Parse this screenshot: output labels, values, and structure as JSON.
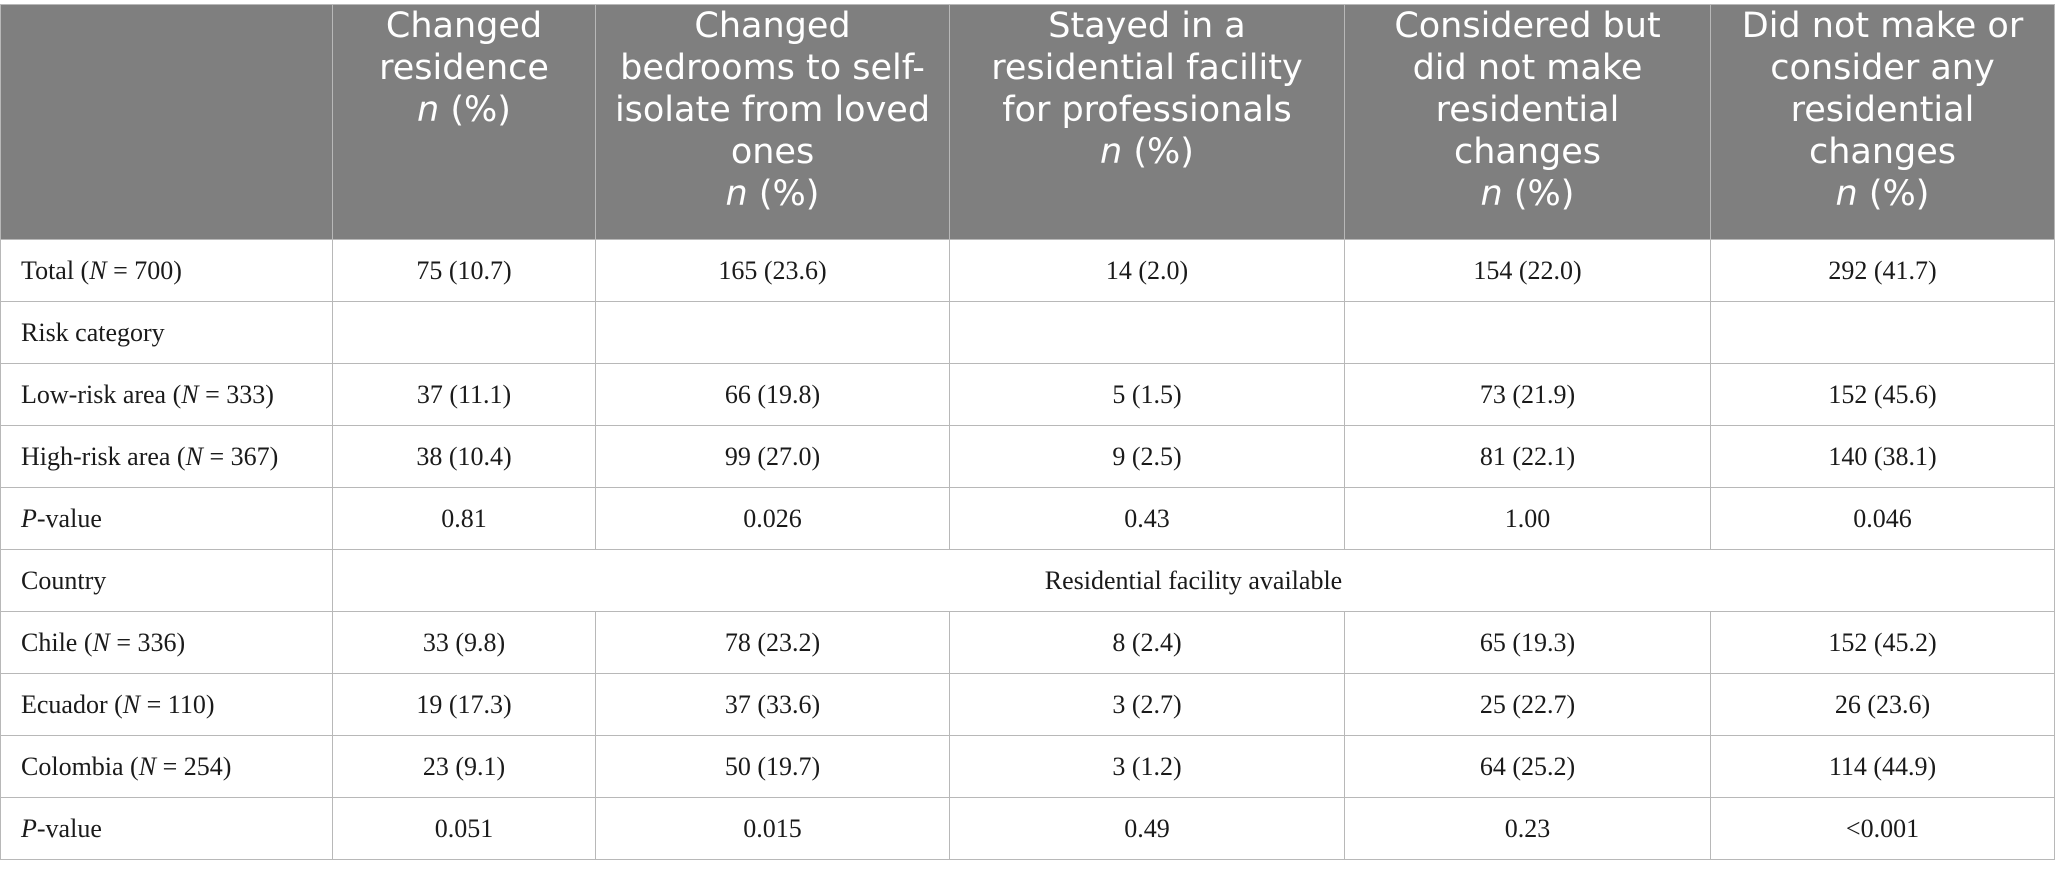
{
  "table": {
    "n_symbol": "n",
    "pct_symbol": " (%)",
    "columns": [
      {
        "lines": [
          "Changed",
          "residence"
        ]
      },
      {
        "lines": [
          "Changed",
          "bedrooms to self-",
          "isolate from loved",
          "ones"
        ]
      },
      {
        "lines": [
          "Stayed in a",
          "residential facility",
          "for professionals"
        ]
      },
      {
        "lines": [
          "Considered but",
          "did not make",
          "residential",
          "changes"
        ]
      },
      {
        "lines": [
          "Did not make or",
          "consider any",
          "residential",
          "changes"
        ]
      }
    ],
    "rows": {
      "total": {
        "label": "Total (",
        "n_var": "N",
        "n_value": " = 700)",
        "values": [
          "75 (10.7)",
          "165 (23.6)",
          "14 (2.0)",
          "154 (22.0)",
          "292 (41.7)"
        ]
      },
      "risk_category": {
        "label": "Risk category"
      },
      "low_risk": {
        "label": "Low-risk area (",
        "n_var": "N",
        "n_value": " = 333)",
        "values": [
          "37 (11.1)",
          "66 (19.8)",
          "5 (1.5)",
          "73 (21.9)",
          "152 (45.6)"
        ]
      },
      "high_risk": {
        "label": "High-risk area (",
        "n_var": "N",
        "n_value": " = 367)",
        "values": [
          "38 (10.4)",
          "99 (27.0)",
          "9 (2.5)",
          "81 (22.1)",
          "140 (38.1)"
        ]
      },
      "p_risk": {
        "p_var": "P",
        "label": "-value",
        "values": [
          "0.81",
          "0.026",
          "0.43",
          "1.00",
          "0.046"
        ]
      },
      "country": {
        "label": "Country",
        "span_text": "Residential facility available"
      },
      "chile": {
        "label": "Chile (",
        "n_var": "N",
        "n_value": " = 336)",
        "values": [
          "33 (9.8)",
          "78 (23.2)",
          "8 (2.4)",
          "65 (19.3)",
          "152 (45.2)"
        ]
      },
      "ecuador": {
        "label": "Ecuador (",
        "n_var": "N",
        "n_value": " = 110)",
        "values": [
          "19 (17.3)",
          "37 (33.6)",
          "3 (2.7)",
          "25 (22.7)",
          "26 (23.6)"
        ]
      },
      "colombia": {
        "label": "Colombia (",
        "n_var": "N",
        "n_value": " = 254)",
        "values": [
          "23 (9.1)",
          "50 (19.7)",
          "3 (1.2)",
          "64 (25.2)",
          "114 (44.9)"
        ]
      },
      "p_country": {
        "p_var": "P",
        "label": "-value",
        "values": [
          "0.051",
          "0.015",
          "0.49",
          "0.23",
          "<0.001"
        ]
      }
    }
  },
  "colors": {
    "header_bg": "#7f7f7f",
    "header_text": "#ffffff",
    "border": "#b8b8b8"
  }
}
